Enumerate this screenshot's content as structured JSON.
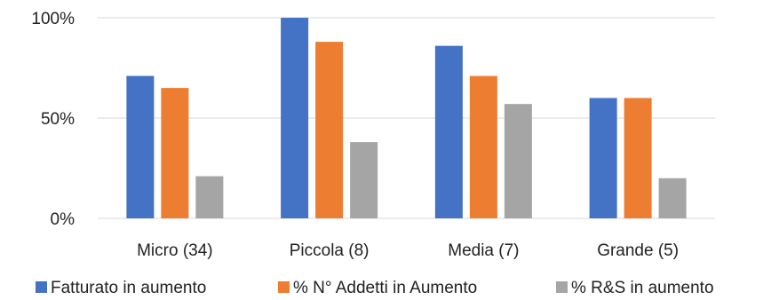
{
  "chart_data": {
    "type": "bar",
    "categories": [
      "Micro (34)",
      "Piccola (8)",
      "Media (7)",
      "Grande (5)"
    ],
    "series": [
      {
        "name": "Fatturato in aumento",
        "color": "#4472c4",
        "values": [
          71,
          100,
          86,
          60
        ]
      },
      {
        "name": "% N° Addetti in Aumento",
        "color": "#ed7d31",
        "values": [
          65,
          88,
          71,
          60
        ]
      },
      {
        "name": "% R&S in aumento",
        "color": "#a5a5a5",
        "values": [
          21,
          38,
          57,
          20
        ]
      }
    ],
    "yticks": [
      {
        "value": 0,
        "label": "0%"
      },
      {
        "value": 50,
        "label": "50%"
      },
      {
        "value": 100,
        "label": "100%"
      }
    ],
    "ylim": [
      0,
      100
    ],
    "grid": true,
    "legend_position": "bottom"
  }
}
